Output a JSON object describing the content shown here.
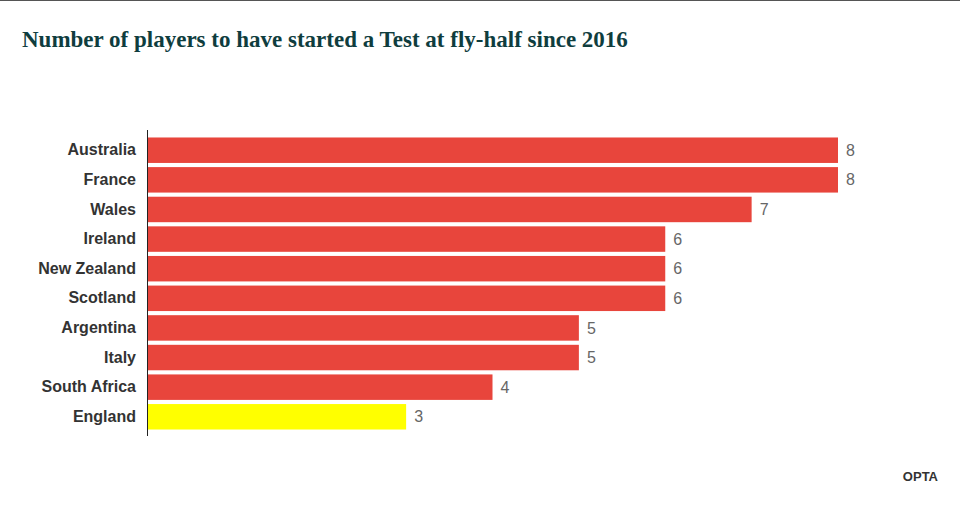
{
  "chart_data": {
    "type": "bar",
    "orientation": "horizontal",
    "title": "Number of players to have started a Test at fly-half since 2016",
    "source": "OPTA",
    "categories": [
      "Australia",
      "France",
      "Wales",
      "Ireland",
      "New Zealand",
      "Scotland",
      "Argentina",
      "Italy",
      "South Africa",
      "England"
    ],
    "values": [
      8,
      8,
      7,
      6,
      6,
      6,
      5,
      5,
      4,
      3
    ],
    "colors": [
      "#e8453c",
      "#e8453c",
      "#e8453c",
      "#e8453c",
      "#e8453c",
      "#e8453c",
      "#e8453c",
      "#e8453c",
      "#e8453c",
      "#ffff00"
    ],
    "xlim": [
      0,
      8
    ],
    "data_labels": true,
    "tick_labels": "y",
    "grid": false
  }
}
